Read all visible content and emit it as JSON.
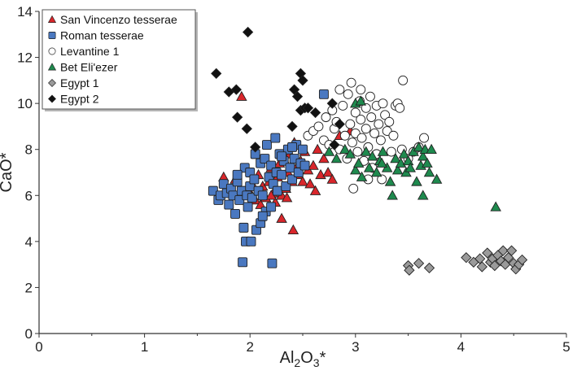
{
  "chart_data": {
    "type": "scatter",
    "title": "",
    "xlabel_main": "Al",
    "xlabel_sub": "2",
    "xlabel_main2": "O",
    "xlabel_sub2": "3",
    "xlabel_suffix": "*",
    "ylabel": "CaO*",
    "xlim": [
      0,
      5
    ],
    "ylim": [
      0,
      14
    ],
    "x_ticks": [
      0,
      1,
      2,
      3,
      4,
      5
    ],
    "y_ticks": [
      0,
      2,
      4,
      6,
      8,
      10,
      12,
      14
    ],
    "grid": false,
    "legend_position": "top-left",
    "series": [
      {
        "name": "San Vincenzo tesserae",
        "marker": "triangle",
        "color": "#d9262b",
        "points": [
          [
            1.75,
            6.8
          ],
          [
            1.86,
            6.7
          ],
          [
            1.92,
            10.3
          ],
          [
            1.98,
            6.3
          ],
          [
            2.02,
            6.5
          ],
          [
            2.05,
            5.8
          ],
          [
            2.08,
            6.9
          ],
          [
            2.1,
            5.6
          ],
          [
            2.12,
            6.4
          ],
          [
            2.15,
            5.9
          ],
          [
            2.18,
            6.6
          ],
          [
            2.2,
            7.2
          ],
          [
            2.22,
            6.1
          ],
          [
            2.24,
            5.7
          ],
          [
            2.26,
            6.8
          ],
          [
            2.28,
            7.4
          ],
          [
            2.3,
            6.0
          ],
          [
            2.32,
            7.6
          ],
          [
            2.34,
            6.3
          ],
          [
            2.36,
            7.0
          ],
          [
            2.38,
            7.8
          ],
          [
            2.4,
            6.6
          ],
          [
            2.41,
            4.5
          ],
          [
            2.42,
            8.3
          ],
          [
            2.44,
            7.2
          ],
          [
            2.46,
            6.9
          ],
          [
            2.48,
            7.5
          ],
          [
            2.5,
            6.6
          ],
          [
            2.52,
            7.9
          ],
          [
            2.55,
            7.1
          ],
          [
            2.57,
            6.5
          ],
          [
            2.6,
            7.3
          ],
          [
            2.62,
            6.2
          ],
          [
            2.64,
            8.0
          ],
          [
            2.67,
            6.9
          ],
          [
            2.7,
            7.6
          ],
          [
            2.74,
            7.0
          ],
          [
            2.78,
            6.7
          ],
          [
            2.85,
            8.6
          ],
          [
            2.95,
            8.8
          ],
          [
            2.3,
            5.0
          ],
          [
            2.2,
            6.0
          ],
          [
            2.35,
            5.9
          ]
        ]
      },
      {
        "name": "Roman tesserae",
        "marker": "square",
        "color": "#4a78c0",
        "points": [
          [
            1.65,
            6.2
          ],
          [
            1.7,
            5.8
          ],
          [
            1.72,
            6.0
          ],
          [
            1.75,
            6.5
          ],
          [
            1.78,
            6.1
          ],
          [
            1.8,
            5.6
          ],
          [
            1.82,
            6.3
          ],
          [
            1.84,
            6.0
          ],
          [
            1.86,
            5.2
          ],
          [
            1.88,
            6.6
          ],
          [
            1.9,
            5.8
          ],
          [
            1.92,
            6.2
          ],
          [
            1.94,
            4.6
          ],
          [
            1.95,
            7.2
          ],
          [
            1.96,
            4.0
          ],
          [
            1.97,
            6.0
          ],
          [
            1.98,
            5.5
          ],
          [
            2.0,
            7.0
          ],
          [
            2.0,
            6.4
          ],
          [
            2.01,
            4.0
          ],
          [
            2.02,
            5.9
          ],
          [
            2.04,
            6.7
          ],
          [
            2.05,
            7.8
          ],
          [
            2.06,
            4.5
          ],
          [
            2.08,
            6.2
          ],
          [
            2.1,
            7.4
          ],
          [
            2.1,
            4.8
          ],
          [
            2.12,
            6.0
          ],
          [
            2.14,
            7.6
          ],
          [
            2.15,
            5.3
          ],
          [
            2.16,
            8.2
          ],
          [
            2.18,
            6.8
          ],
          [
            2.2,
            7.3
          ],
          [
            2.2,
            5.5
          ],
          [
            2.22,
            6.5
          ],
          [
            2.24,
            8.5
          ],
          [
            2.25,
            7.0
          ],
          [
            2.26,
            6.2
          ],
          [
            2.28,
            7.8
          ],
          [
            2.3,
            6.9
          ],
          [
            2.32,
            7.5
          ],
          [
            2.34,
            6.4
          ],
          [
            2.36,
            8.0
          ],
          [
            2.38,
            7.2
          ],
          [
            2.4,
            6.7
          ],
          [
            2.42,
            7.6
          ],
          [
            2.44,
            8.2
          ],
          [
            2.46,
            7.0
          ],
          [
            2.48,
            7.4
          ],
          [
            2.5,
            8.0
          ],
          [
            2.52,
            7.3
          ],
          [
            2.7,
            10.4
          ],
          [
            1.93,
            3.1
          ],
          [
            2.21,
            3.05
          ],
          [
            1.88,
            6.9
          ],
          [
            2.12,
            5.1
          ],
          [
            2.3,
            7.7
          ],
          [
            2.4,
            8.1
          ]
        ]
      },
      {
        "name": "Levantine 1",
        "marker": "circle",
        "color": "#ffffff",
        "points": [
          [
            2.55,
            8.6
          ],
          [
            2.6,
            8.8
          ],
          [
            2.65,
            9.0
          ],
          [
            2.7,
            8.4
          ],
          [
            2.72,
            9.4
          ],
          [
            2.75,
            8.2
          ],
          [
            2.78,
            9.7
          ],
          [
            2.8,
            8.9
          ],
          [
            2.82,
            9.2
          ],
          [
            2.85,
            8.0
          ],
          [
            2.88,
            9.9
          ],
          [
            2.9,
            8.6
          ],
          [
            2.92,
            7.6
          ],
          [
            2.93,
            10.4
          ],
          [
            2.95,
            9.1
          ],
          [
            2.96,
            10.9
          ],
          [
            2.97,
            8.3
          ],
          [
            2.98,
            6.3
          ],
          [
            3.0,
            9.6
          ],
          [
            3.0,
            8.7
          ],
          [
            3.02,
            7.9
          ],
          [
            3.04,
            10.1
          ],
          [
            3.05,
            9.3
          ],
          [
            3.06,
            8.5
          ],
          [
            3.08,
            7.5
          ],
          [
            3.1,
            9.8
          ],
          [
            3.1,
            8.9
          ],
          [
            3.12,
            8.1
          ],
          [
            3.14,
            10.3
          ],
          [
            3.15,
            9.4
          ],
          [
            3.16,
            7.2
          ],
          [
            3.18,
            8.7
          ],
          [
            3.2,
            9.9
          ],
          [
            3.2,
            7.8
          ],
          [
            3.22,
            9.1
          ],
          [
            3.24,
            8.4
          ],
          [
            3.25,
            6.7
          ],
          [
            3.26,
            10.0
          ],
          [
            3.28,
            9.5
          ],
          [
            3.3,
            8.8
          ],
          [
            3.32,
            9.2
          ],
          [
            3.34,
            7.9
          ],
          [
            3.36,
            8.6
          ],
          [
            3.38,
            9.9
          ],
          [
            3.4,
            10.0
          ],
          [
            3.42,
            9.8
          ],
          [
            3.44,
            8.0
          ],
          [
            3.45,
            11.0
          ],
          [
            3.5,
            7.6
          ],
          [
            3.55,
            7.9
          ],
          [
            3.6,
            8.1
          ],
          [
            3.65,
            8.5
          ],
          [
            3.05,
            10.6
          ],
          [
            2.85,
            10.6
          ],
          [
            3.12,
            6.7
          ]
        ]
      },
      {
        "name": "Bet Eli'ezer",
        "marker": "triangle",
        "color": "#1e8a4e",
        "points": [
          [
            2.75,
            7.9
          ],
          [
            2.82,
            7.6
          ],
          [
            2.9,
            8.0
          ],
          [
            2.95,
            7.8
          ],
          [
            3.0,
            10.0
          ],
          [
            3.0,
            7.1
          ],
          [
            3.03,
            7.4
          ],
          [
            3.06,
            6.8
          ],
          [
            3.1,
            7.9
          ],
          [
            3.13,
            7.2
          ],
          [
            3.16,
            7.7
          ],
          [
            3.2,
            7.0
          ],
          [
            3.23,
            7.5
          ],
          [
            3.26,
            7.9
          ],
          [
            3.3,
            7.2
          ],
          [
            3.33,
            6.6
          ],
          [
            3.35,
            6.0
          ],
          [
            3.38,
            7.6
          ],
          [
            3.4,
            7.1
          ],
          [
            3.43,
            7.4
          ],
          [
            3.46,
            7.8
          ],
          [
            3.48,
            7.0
          ],
          [
            3.5,
            7.5
          ],
          [
            3.52,
            7.2
          ],
          [
            3.55,
            7.9
          ],
          [
            3.58,
            6.6
          ],
          [
            3.6,
            8.1
          ],
          [
            3.62,
            7.3
          ],
          [
            3.64,
            7.7
          ],
          [
            3.66,
            8.0
          ],
          [
            3.68,
            7.4
          ],
          [
            3.7,
            7.0
          ],
          [
            3.72,
            8.0
          ],
          [
            3.77,
            6.7
          ],
          [
            3.64,
            6.0
          ],
          [
            4.33,
            5.5
          ],
          [
            3.05,
            10.1
          ],
          [
            3.25,
            7.4
          ]
        ]
      },
      {
        "name": "Egypt 1",
        "marker": "diamond",
        "color": "#9a9a9a",
        "points": [
          [
            3.5,
            2.95
          ],
          [
            3.51,
            2.75
          ],
          [
            3.6,
            3.05
          ],
          [
            3.7,
            2.85
          ],
          [
            4.05,
            3.3
          ],
          [
            4.12,
            3.1
          ],
          [
            4.18,
            3.25
          ],
          [
            4.2,
            2.9
          ],
          [
            4.25,
            3.5
          ],
          [
            4.28,
            3.1
          ],
          [
            4.3,
            3.25
          ],
          [
            4.32,
            2.95
          ],
          [
            4.35,
            3.4
          ],
          [
            4.38,
            3.15
          ],
          [
            4.4,
            3.6
          ],
          [
            4.42,
            3.0
          ],
          [
            4.45,
            3.3
          ],
          [
            4.48,
            3.6
          ],
          [
            4.5,
            3.05
          ],
          [
            4.52,
            2.8
          ],
          [
            4.55,
            3.0
          ],
          [
            4.58,
            3.2
          ]
        ]
      },
      {
        "name": "Egypt 2",
        "marker": "diamond",
        "color": "#111111",
        "points": [
          [
            1.68,
            11.3
          ],
          [
            1.8,
            10.5
          ],
          [
            1.87,
            10.6
          ],
          [
            1.88,
            9.4
          ],
          [
            1.97,
            8.9
          ],
          [
            1.98,
            13.1
          ],
          [
            2.05,
            8.1
          ],
          [
            2.42,
            10.6
          ],
          [
            2.45,
            10.3
          ],
          [
            2.48,
            9.7
          ],
          [
            2.48,
            11.3
          ],
          [
            2.5,
            11.0
          ],
          [
            2.52,
            9.8
          ],
          [
            2.55,
            9.8
          ],
          [
            2.62,
            9.6
          ],
          [
            2.78,
            10.0
          ],
          [
            2.8,
            8.2
          ],
          [
            2.85,
            9.1
          ],
          [
            2.4,
            9.0
          ]
        ]
      }
    ]
  }
}
